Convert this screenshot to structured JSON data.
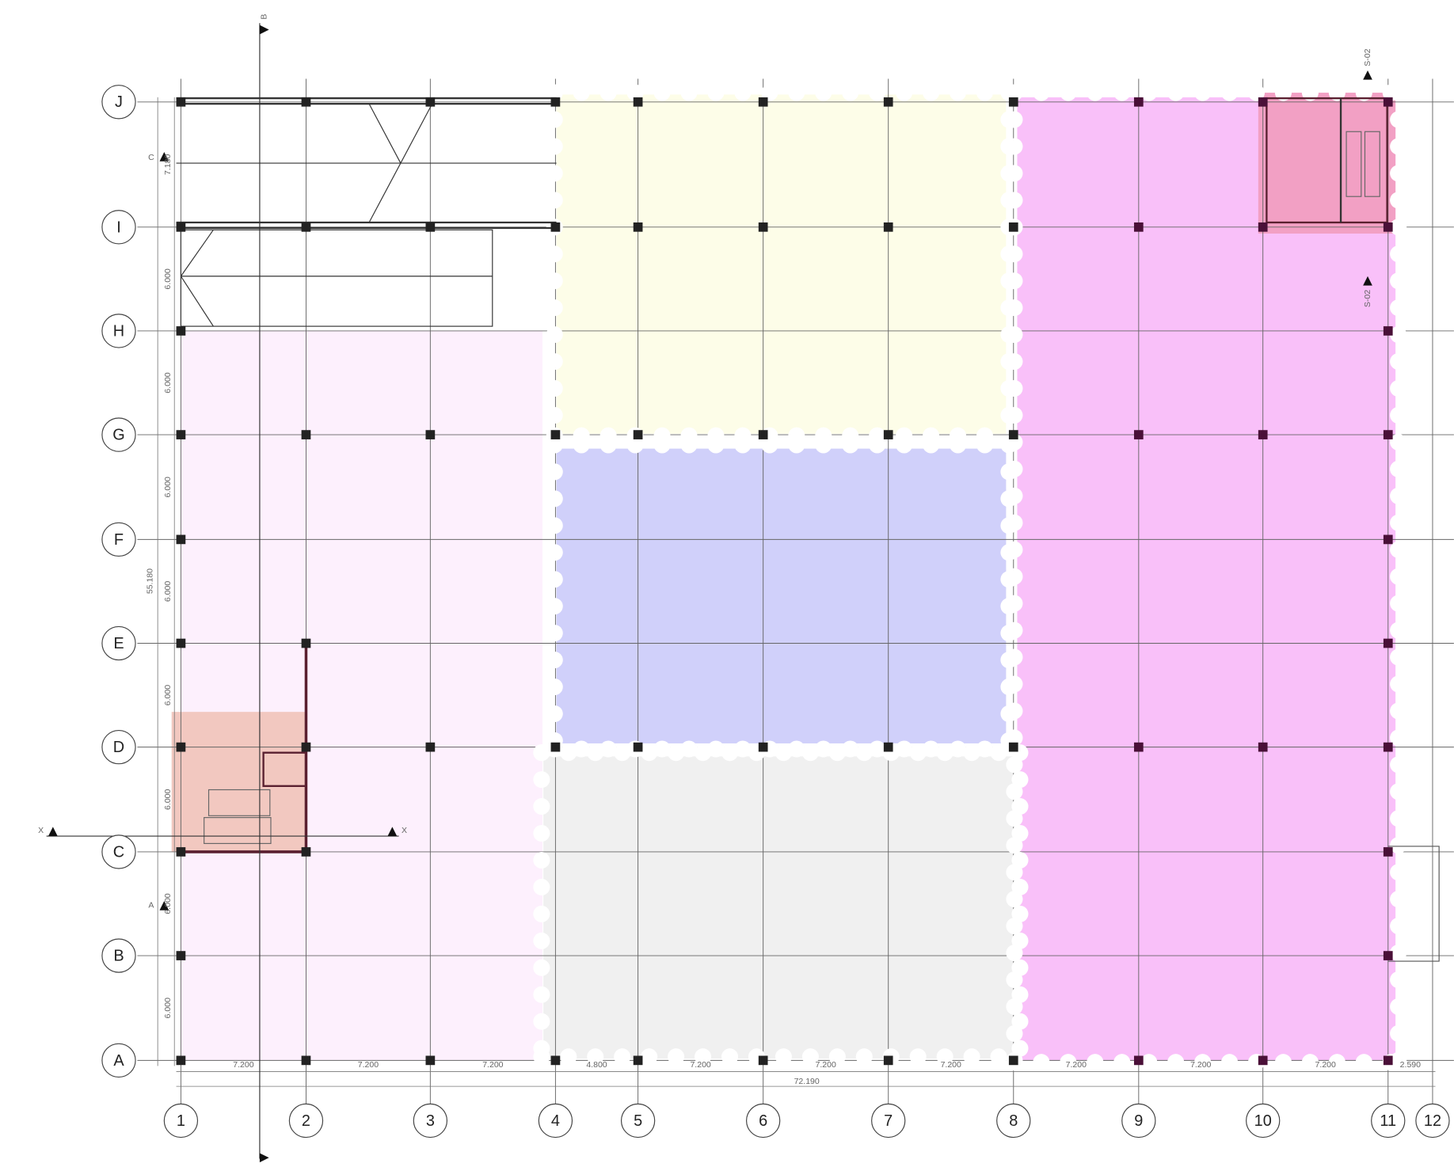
{
  "rows": [
    "J",
    "I",
    "H",
    "G",
    "F",
    "E",
    "D",
    "C",
    "B",
    "A"
  ],
  "columns": [
    "1",
    "2",
    "3",
    "4",
    "5",
    "6",
    "7",
    "8",
    "9",
    "10",
    "11",
    "12"
  ],
  "dimensions": {
    "bays_x": [
      "7.200",
      "7.200",
      "7.200",
      "4.800",
      "7.200",
      "7.200",
      "7.200",
      "7.200",
      "7.200",
      "7.200",
      "2.590"
    ],
    "bays_y": [
      "7.180",
      "6.000",
      "6.000",
      "6.000",
      "6.000",
      "6.000",
      "6.000",
      "6.000",
      "6.000"
    ],
    "total_x": "72.190",
    "total_y": "55.180"
  },
  "sections": {
    "top": "B",
    "left_upper": "C",
    "left_lower": "A",
    "x_left": "X",
    "x_right": "X",
    "s02_top": "S-02",
    "s02_bottom": "S-02"
  }
}
